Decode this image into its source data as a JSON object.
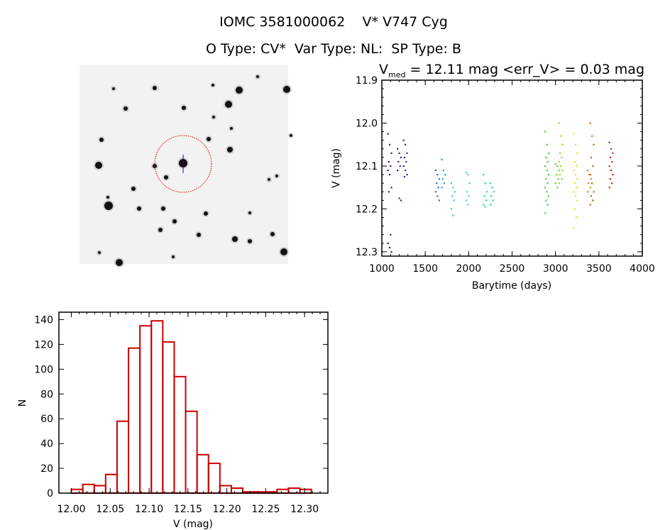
{
  "header": {
    "title": "IOMC 3581000062    V* V747 Cyg",
    "subtitle": "O Type: CV*  Var Type: NL:  SP Type: B"
  },
  "sky_image": {
    "kind": "grayscale star field with red circle around target",
    "circle_color": "#c00000"
  },
  "chart_data": [
    {
      "type": "scatter",
      "title_main": "V",
      "title_sub": "med",
      "title_rest": " = 12.11 mag <err_V> = 0.03 mag",
      "xlabel": "Barytime (days)",
      "ylabel": "V (mag)",
      "xlim": [
        1000,
        4000
      ],
      "ylim": [
        11.9,
        12.31
      ],
      "y_reversed": true,
      "xticks": [
        "1000",
        "1500",
        "2000",
        "2500",
        "3000",
        "3500",
        "4000"
      ],
      "yticks": [
        "11.9",
        "12.0",
        "12.1",
        "12.2",
        "12.3"
      ],
      "series": [
        {
          "x": 1090,
          "color": "#50107a",
          "y": [
            12.025,
            12.05,
            12.07,
            12.09,
            12.1,
            12.11,
            12.12,
            12.15,
            12.16,
            12.26,
            12.28,
            12.29,
            12.3
          ]
        },
        {
          "x": 1200,
          "color": "#3a20a0",
          "y": [
            12.06,
            12.07,
            12.08,
            12.09,
            12.1,
            12.11,
            12.175,
            12.18
          ]
        },
        {
          "x": 1270,
          "color": "#2030c0",
          "y": [
            12.04,
            12.05,
            12.07,
            12.08,
            12.09,
            12.1,
            12.11,
            12.12,
            12.125
          ]
        },
        {
          "x": 1640,
          "color": "#1a6cd0",
          "y": [
            12.11,
            12.12,
            12.13,
            12.14,
            12.15,
            12.16,
            12.17,
            12.18
          ]
        },
        {
          "x": 1710,
          "color": "#2098e0",
          "y": [
            12.085,
            12.11,
            12.12,
            12.13,
            12.14,
            12.15
          ]
        },
        {
          "x": 1820,
          "color": "#30c4dc",
          "y": [
            12.14,
            12.15,
            12.16,
            12.17,
            12.18,
            12.2,
            12.215
          ]
        },
        {
          "x": 1990,
          "color": "#30d8c8",
          "y": [
            12.115,
            12.12,
            12.14,
            12.16,
            12.17,
            12.18,
            12.19
          ]
        },
        {
          "x": 2190,
          "color": "#20d8a0",
          "y": [
            12.12,
            12.14,
            12.16,
            12.17,
            12.18,
            12.19,
            12.195
          ]
        },
        {
          "x": 2270,
          "color": "#20d880",
          "y": [
            12.14,
            12.15,
            12.16,
            12.17,
            12.18,
            12.19
          ]
        },
        {
          "x": 2900,
          "color": "#30d830",
          "y": [
            12.02,
            12.05,
            12.07,
            12.08,
            12.09,
            12.1,
            12.11,
            12.12,
            12.13,
            12.14,
            12.15,
            12.16,
            12.17,
            12.18,
            12.19,
            12.21
          ]
        },
        {
          "x": 3020,
          "color": "#60d820",
          "y": [
            12.095,
            12.1,
            12.11,
            12.12,
            12.13,
            12.14,
            12.15
          ]
        },
        {
          "x": 3060,
          "color": "#90e020",
          "y": [
            12.0,
            12.03,
            12.05,
            12.07,
            12.08,
            12.09,
            12.1,
            12.11,
            12.12,
            12.13,
            12.14
          ]
        },
        {
          "x": 3230,
          "color": "#e0e020",
          "y": [
            12.025,
            12.05,
            12.07,
            12.09,
            12.1,
            12.11,
            12.12,
            12.13,
            12.14,
            12.15,
            12.16,
            12.17,
            12.18,
            12.2,
            12.22,
            12.245
          ]
        },
        {
          "x": 3390,
          "color": "#e08010",
          "y": [
            12.11,
            12.12,
            12.13,
            12.14,
            12.15,
            12.16
          ]
        },
        {
          "x": 3420,
          "color": "#e05510",
          "y": [
            12.0,
            12.03,
            12.05,
            12.08,
            12.1,
            12.12,
            12.14,
            12.16,
            12.17,
            12.18,
            12.19
          ]
        },
        {
          "x": 3640,
          "color": "#d02010",
          "y": [
            12.045,
            12.06,
            12.07,
            12.08,
            12.09,
            12.1,
            12.11,
            12.12,
            12.13,
            12.14,
            12.15
          ]
        }
      ]
    },
    {
      "type": "bar",
      "subtype": "histogram",
      "xlabel": "V (mag)",
      "ylabel": "N",
      "xlim": [
        11.984,
        12.33
      ],
      "ylim": [
        0,
        146
      ],
      "bar_color": "#cc0000",
      "bin_start": 12.0,
      "bin_width": 0.0147,
      "values": [
        3,
        7,
        6,
        15,
        58,
        117,
        135,
        139,
        122,
        94,
        66,
        31,
        24,
        6,
        4,
        1,
        1,
        1,
        3,
        4,
        3
      ],
      "xticks": [
        "12.00",
        "12.05",
        "12.10",
        "12.15",
        "12.20",
        "12.25",
        "12.30"
      ],
      "yticks": [
        "0",
        "20",
        "40",
        "60",
        "80",
        "100",
        "120",
        "140"
      ]
    }
  ]
}
